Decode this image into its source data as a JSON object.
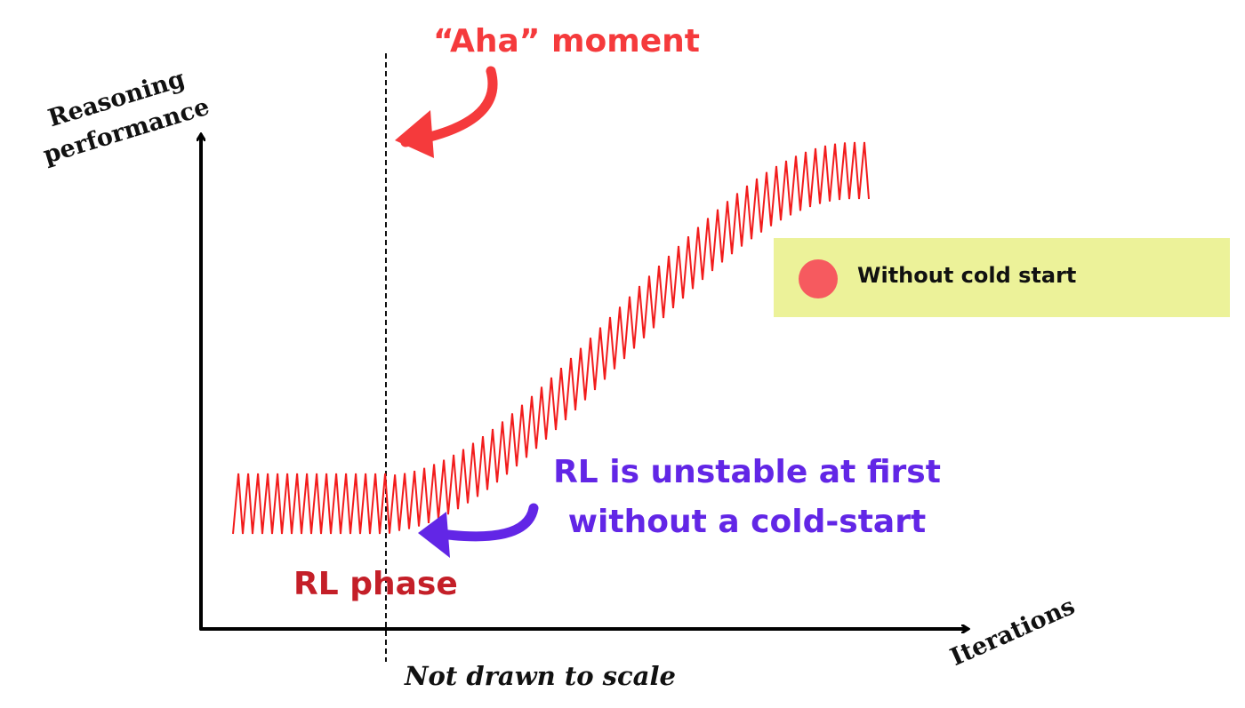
{
  "labels": {
    "y_axis_line1": "Reasoning",
    "y_axis_line2": "performance",
    "x_axis": "Iterations",
    "aha_moment": "“Aha” moment",
    "rl_unstable_line1": "RL is unstable at first",
    "rl_unstable_line2": "without a cold-start",
    "rl_phase": "RL phase",
    "scale_note": "Not drawn to scale"
  },
  "legend": {
    "label": "Without cold start",
    "dot_color": "#f65a5f",
    "background": "#ecf299"
  },
  "colors": {
    "curve": "#f21c1c",
    "aha": "#f53a3c",
    "note": "#6226e6",
    "rl_phase": "#c41f28",
    "axis": "#000000"
  },
  "icons": {
    "aha_arrow": "curved-arrow-icon",
    "note_arrow": "curved-arrow-icon"
  },
  "series": {
    "name": "Without cold start",
    "trend": "flat oscillation during early RL, then steady sawtooth rise after the aha moment"
  }
}
